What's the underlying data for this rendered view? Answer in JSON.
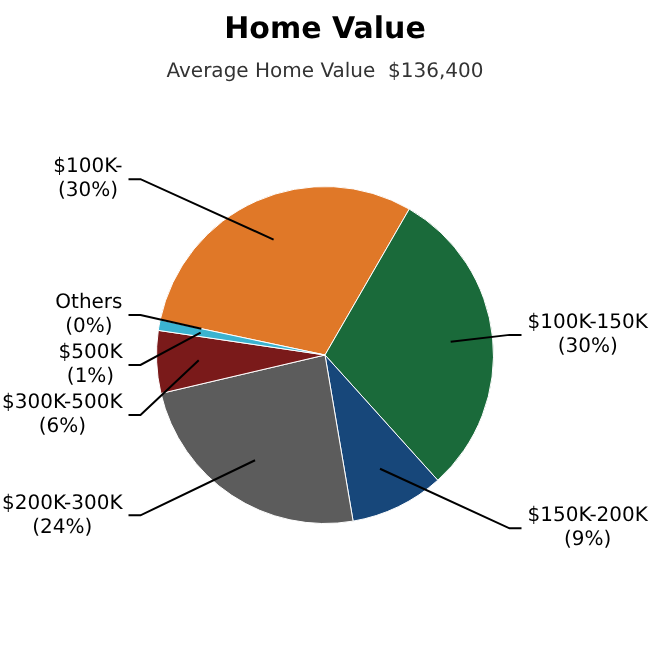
{
  "chart_data": {
    "type": "pie",
    "title": "Home Value",
    "subtitle": "Average Home Value  $136,400",
    "categories": [
      "$100K-",
      "$100K-150K",
      "$150K-200K",
      "$200K-300K",
      "$300K-500K",
      "$500K",
      "Others"
    ],
    "values": [
      30,
      30,
      9,
      24,
      6,
      1,
      0
    ],
    "value_labels": [
      "(30%)",
      "(30%)",
      "(9%)",
      "(24%)",
      "(6%)",
      "(1%)",
      "(0%)"
    ],
    "colors": [
      "#e07828",
      "#1a6a3a",
      "#17477a",
      "#5c5c5c",
      "#7a1a1a",
      "#3bb3d0",
      "#7070c0"
    ],
    "legend": false
  }
}
